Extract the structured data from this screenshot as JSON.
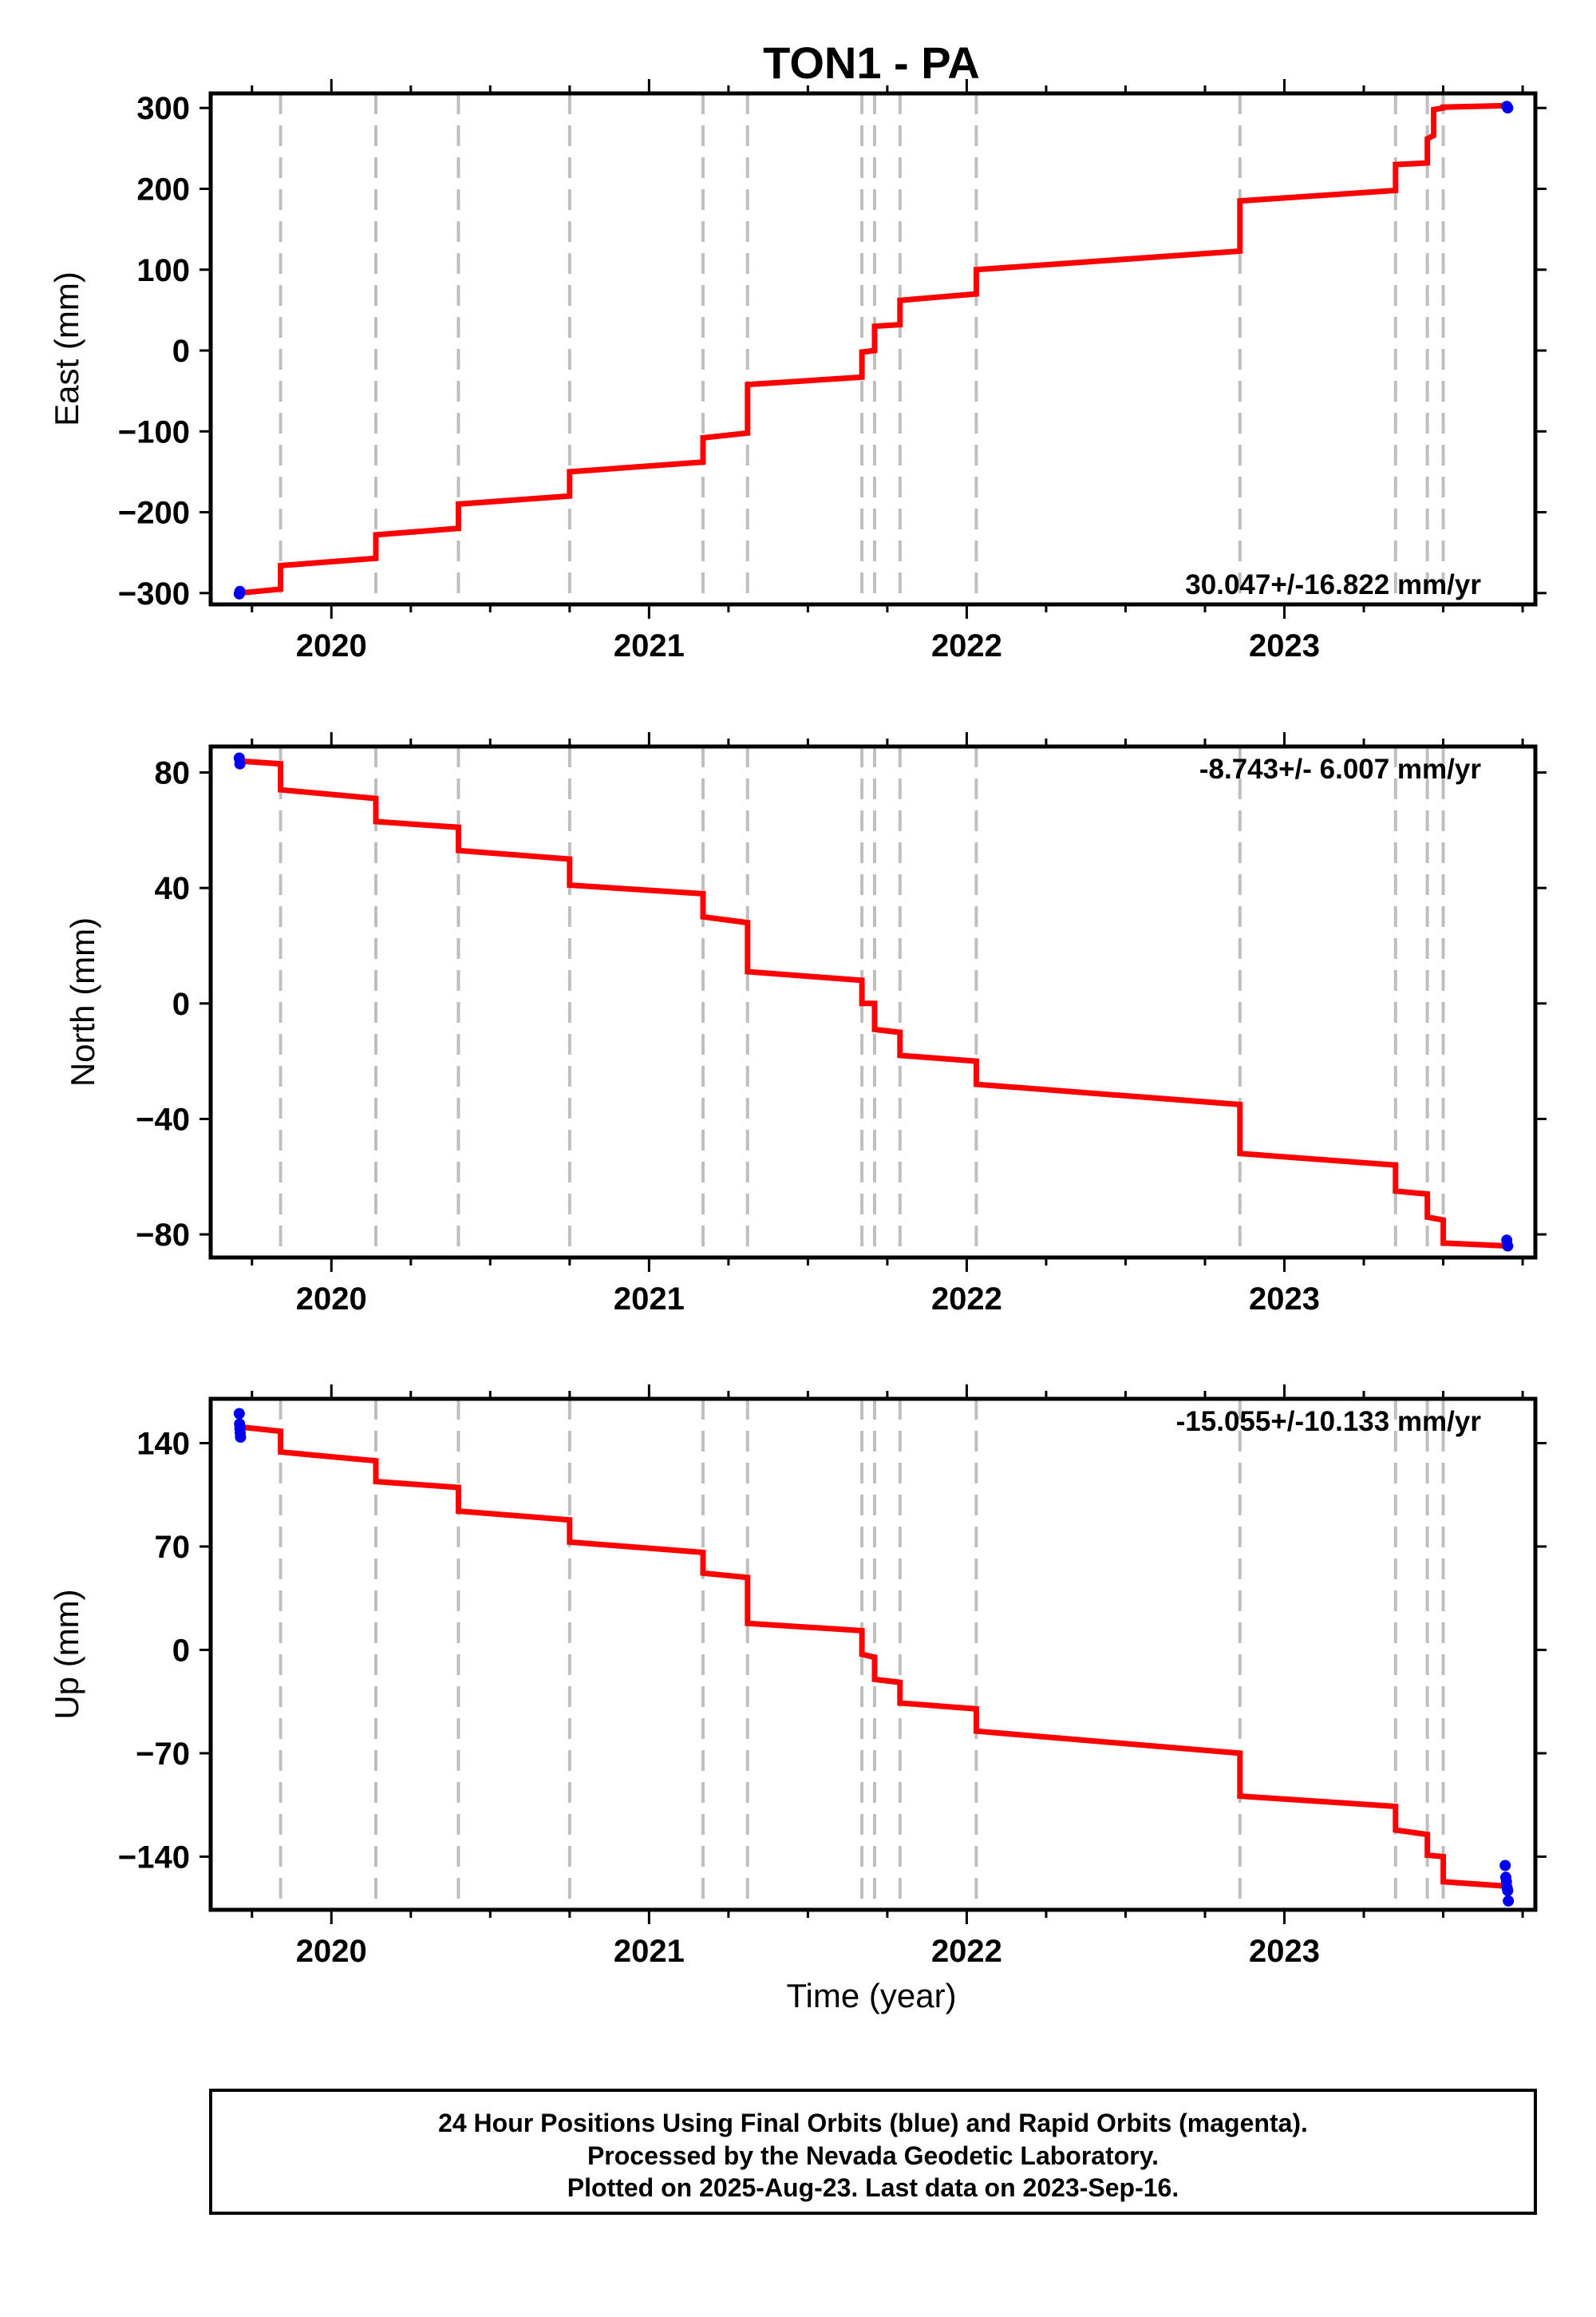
{
  "title": "TON1 - PA",
  "x_axis_title": "Time (year)",
  "footer": {
    "line1": "24 Hour Positions Using Final Orbits (blue) and Rapid Orbits (magenta).",
    "line2": "Processed by the Nevada Geodetic Laboratory.",
    "line3": "Plotted on 2025-Aug-23. Last data on 2023-Sep-16."
  },
  "colors": {
    "model_line": "#ff0000",
    "final_orbits": "#0000ee",
    "event_lines": "#bfbfbf",
    "frame": "#000000"
  },
  "chart_data": [
    {
      "type": "line",
      "component": "east",
      "ylabel": "East (mm)",
      "rate_text": "30.047+/-16.822 mm/yr",
      "rate_position": "bottom-right",
      "xlim": [
        2019.62,
        2023.79
      ],
      "ylim": [
        -314,
        318
      ],
      "yticks": [
        300,
        200,
        100,
        0,
        -100,
        -200,
        -300
      ],
      "xticks": [
        2020,
        2021,
        2022,
        2023
      ],
      "events": [
        2019.84,
        2020.14,
        2020.4,
        2020.75,
        2021.17,
        2021.31,
        2021.67,
        2021.71,
        2021.79,
        2022.03,
        2022.86,
        2023.35,
        2023.45,
        2023.5
      ],
      "series": [
        {
          "kind": "model",
          "x": [
            2019.71,
            2019.84,
            2019.84,
            2020.14,
            2020.14,
            2020.4,
            2020.4,
            2020.75,
            2020.75,
            2021.17,
            2021.17,
            2021.31,
            2021.31,
            2021.67,
            2021.67,
            2021.71,
            2021.71,
            2021.79,
            2021.79,
            2022.03,
            2022.03,
            2022.86,
            2022.86,
            2023.35,
            2023.35,
            2023.45,
            2023.45,
            2023.47,
            2023.47,
            2023.5,
            2023.5,
            2023.7
          ],
          "y": [
            -300,
            -295,
            -266,
            -257,
            -228,
            -220,
            -190,
            -180,
            -150,
            -138,
            -108,
            -102,
            -42,
            -33,
            -2,
            0,
            30,
            32,
            62,
            70,
            100,
            123,
            185,
            198,
            230,
            232,
            262,
            266,
            298,
            300,
            301,
            303
          ]
        },
        {
          "kind": "final_orbits",
          "x": [
            2019.71,
            2019.712,
            2023.7,
            2023.703
          ],
          "y": [
            -301,
            -298,
            302,
            300
          ]
        }
      ]
    },
    {
      "type": "line",
      "component": "north",
      "ylabel": "North (mm)",
      "rate_text": "-8.743+/- 6.007 mm/yr",
      "rate_position": "top-right",
      "xlim": [
        2019.62,
        2023.79
      ],
      "ylim": [
        -88,
        89
      ],
      "yticks": [
        80,
        40,
        0,
        -40,
        -80
      ],
      "xticks": [
        2020,
        2021,
        2022,
        2023
      ],
      "events": [
        2019.84,
        2020.14,
        2020.4,
        2020.75,
        2021.17,
        2021.31,
        2021.67,
        2021.71,
        2021.79,
        2022.03,
        2022.86,
        2023.35,
        2023.45,
        2023.5
      ],
      "series": [
        {
          "kind": "model",
          "x": [
            2019.71,
            2019.84,
            2019.84,
            2020.14,
            2020.14,
            2020.4,
            2020.4,
            2020.75,
            2020.75,
            2021.17,
            2021.17,
            2021.31,
            2021.31,
            2021.67,
            2021.67,
            2021.71,
            2021.71,
            2021.79,
            2021.79,
            2022.03,
            2022.03,
            2022.86,
            2022.86,
            2023.35,
            2023.35,
            2023.45,
            2023.45,
            2023.5,
            2023.5,
            2023.7
          ],
          "y": [
            84,
            83,
            74,
            71,
            63,
            61,
            53,
            50,
            41,
            38,
            30,
            28,
            11,
            8,
            0,
            0,
            -9,
            -10,
            -18,
            -20,
            -28,
            -35,
            -52,
            -56,
            -65,
            -66,
            -74,
            -75,
            -83,
            -84
          ]
        },
        {
          "kind": "final_orbits",
          "x": [
            2019.71,
            2019.712,
            2023.7,
            2023.703
          ],
          "y": [
            85,
            83,
            -82,
            -84
          ]
        }
      ]
    },
    {
      "type": "line",
      "component": "up",
      "ylabel": "Up (mm)",
      "rate_text": "-15.055+/-10.133 mm/yr",
      "rate_position": "top-right",
      "xlim": [
        2019.62,
        2023.79
      ],
      "ylim": [
        -176,
        170
      ],
      "yticks": [
        140,
        70,
        0,
        -70,
        -140
      ],
      "xticks": [
        2020,
        2021,
        2022,
        2023
      ],
      "events": [
        2019.84,
        2020.14,
        2020.4,
        2020.75,
        2021.17,
        2021.31,
        2021.67,
        2021.71,
        2021.79,
        2022.03,
        2022.86,
        2023.35,
        2023.45,
        2023.5
      ],
      "series": [
        {
          "kind": "model",
          "x": [
            2019.71,
            2019.84,
            2019.84,
            2020.14,
            2020.14,
            2020.4,
            2020.4,
            2020.75,
            2020.75,
            2021.17,
            2021.17,
            2021.31,
            2021.31,
            2021.67,
            2021.67,
            2021.71,
            2021.71,
            2021.79,
            2021.79,
            2022.03,
            2022.03,
            2022.86,
            2022.86,
            2023.35,
            2023.35,
            2023.45,
            2023.45,
            2023.5,
            2023.5,
            2023.7
          ],
          "y": [
            151,
            148,
            134,
            128,
            114,
            110,
            94,
            88,
            73,
            66,
            52,
            49,
            18,
            13,
            -3,
            -5,
            -20,
            -22,
            -36,
            -40,
            -55,
            -70,
            -99,
            -106,
            -122,
            -125,
            -139,
            -140,
            -157,
            -160
          ]
        },
        {
          "kind": "final_orbits",
          "x": [
            2019.71,
            2019.711,
            2019.712,
            2019.713,
            2019.714,
            2023.695,
            2023.697,
            2023.699,
            2023.701,
            2023.703,
            2023.705
          ],
          "y": [
            160,
            153,
            150,
            147,
            144,
            -146,
            -154,
            -157,
            -161,
            -163,
            -170
          ]
        }
      ]
    }
  ]
}
